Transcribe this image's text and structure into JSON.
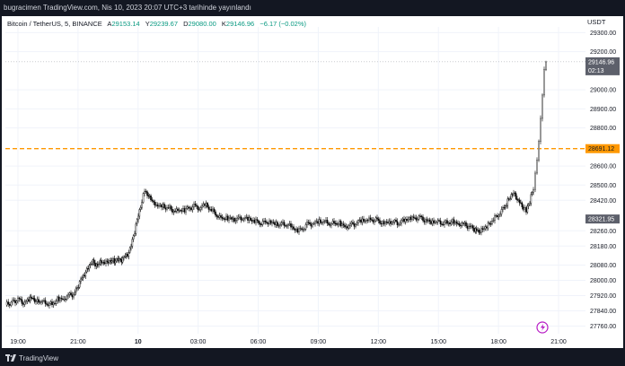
{
  "header": {
    "text": "bugracimen TradingView.com, Nis 10, 2023 20:07 UTC+3 tarihinde yayınlandı"
  },
  "symbol_line": "Bitcoin / TetherUS, 5, BINANCE",
  "ohlc": {
    "o_label": "A",
    "o_value": "29153.14",
    "h_label": "Y",
    "h_value": "29239.67",
    "l_label": "D",
    "l_value": "29080.00",
    "c_label": "K",
    "c_value": "29146.96",
    "change": "−6.17 (−0.02%)"
  },
  "currency_label": "USDT",
  "footer": {
    "brand": "TradingView"
  },
  "colors": {
    "frame": "#131722",
    "candle": "#000000",
    "orange_line": "#ff9800",
    "price_badge": "#5d606b"
  },
  "chart_data": {
    "type": "candlestick",
    "title": "Bitcoin / TetherUS, 5, BINANCE",
    "ylim": [
      27720,
      29330
    ],
    "y_ticks": [
      29300,
      29200,
      29000,
      28900,
      28800,
      28600,
      28500,
      28420,
      28260,
      28180,
      28080,
      28000,
      27920,
      27840,
      27760
    ],
    "y_tick_labels": [
      "29300.00",
      "29200.00",
      "29000.00",
      "28900.00",
      "28800.00",
      "28600.00",
      "28500.00",
      "28420.00",
      "28260.00",
      "28180.00",
      "28080.00",
      "28000.00",
      "27920.00",
      "27840.00",
      "27760.00"
    ],
    "x_ticks": [
      "19:00",
      "21:00",
      "10",
      "03:00",
      "06:00",
      "09:00",
      "12:00",
      "15:00",
      "18:00",
      "21:00"
    ],
    "last_price": {
      "value": 29146.96,
      "label": "29146.96",
      "countdown": "02:13"
    },
    "horizontal_line": {
      "value": 28691.12,
      "label": "28691.12"
    },
    "marker_price": {
      "value": 28321.95,
      "label": "28321.95"
    },
    "price_path": [
      [
        0,
        27870
      ],
      [
        8,
        27890
      ],
      [
        14,
        27900
      ],
      [
        20,
        27885
      ],
      [
        26,
        27895
      ],
      [
        30,
        27910
      ],
      [
        34,
        27895
      ],
      [
        40,
        27885
      ],
      [
        46,
        27880
      ],
      [
        52,
        27870
      ],
      [
        58,
        27900
      ],
      [
        64,
        27905
      ],
      [
        70,
        27920
      ],
      [
        76,
        27930
      ],
      [
        80,
        27960
      ],
      [
        84,
        28000
      ],
      [
        88,
        28030
      ],
      [
        92,
        28060
      ],
      [
        96,
        28100
      ],
      [
        100,
        28080
      ],
      [
        104,
        28090
      ],
      [
        108,
        28100
      ],
      [
        112,
        28095
      ],
      [
        116,
        28105
      ],
      [
        120,
        28100
      ],
      [
        124,
        28110
      ],
      [
        128,
        28100
      ],
      [
        132,
        28120
      ],
      [
        136,
        28130
      ],
      [
        140,
        28180
      ],
      [
        144,
        28260
      ],
      [
        148,
        28340
      ],
      [
        152,
        28420
      ],
      [
        155,
        28470
      ],
      [
        158,
        28450
      ],
      [
        162,
        28420
      ],
      [
        168,
        28400
      ],
      [
        174,
        28390
      ],
      [
        180,
        28380
      ],
      [
        186,
        28370
      ],
      [
        192,
        28360
      ],
      [
        198,
        28370
      ],
      [
        204,
        28380
      ],
      [
        210,
        28390
      ],
      [
        216,
        28380
      ],
      [
        222,
        28400
      ],
      [
        228,
        28370
      ],
      [
        234,
        28350
      ],
      [
        240,
        28320
      ],
      [
        246,
        28330
      ],
      [
        252,
        28325
      ],
      [
        258,
        28320
      ],
      [
        264,
        28330
      ],
      [
        270,
        28320
      ],
      [
        276,
        28310
      ],
      [
        282,
        28305
      ],
      [
        288,
        28300
      ],
      [
        294,
        28310
      ],
      [
        300,
        28300
      ],
      [
        306,
        28290
      ],
      [
        312,
        28295
      ],
      [
        318,
        28280
      ],
      [
        324,
        28260
      ],
      [
        330,
        28270
      ],
      [
        336,
        28295
      ],
      [
        342,
        28300
      ],
      [
        348,
        28310
      ],
      [
        354,
        28305
      ],
      [
        360,
        28300
      ],
      [
        366,
        28295
      ],
      [
        372,
        28300
      ],
      [
        378,
        28285
      ],
      [
        384,
        28290
      ],
      [
        390,
        28300
      ],
      [
        396,
        28315
      ],
      [
        402,
        28310
      ],
      [
        408,
        28320
      ],
      [
        414,
        28315
      ],
      [
        420,
        28300
      ],
      [
        426,
        28310
      ],
      [
        432,
        28305
      ],
      [
        438,
        28300
      ],
      [
        444,
        28315
      ],
      [
        450,
        28320
      ],
      [
        456,
        28330
      ],
      [
        462,
        28330
      ],
      [
        468,
        28315
      ],
      [
        474,
        28310
      ],
      [
        480,
        28305
      ],
      [
        486,
        28300
      ],
      [
        492,
        28300
      ],
      [
        498,
        28305
      ],
      [
        504,
        28300
      ],
      [
        510,
        28295
      ],
      [
        516,
        28285
      ],
      [
        522,
        28270
      ],
      [
        526,
        28260
      ],
      [
        530,
        28265
      ],
      [
        536,
        28280
      ],
      [
        542,
        28310
      ],
      [
        548,
        28340
      ],
      [
        554,
        28370
      ],
      [
        558,
        28400
      ],
      [
        562,
        28440
      ],
      [
        566,
        28460
      ],
      [
        570,
        28430
      ],
      [
        574,
        28400
      ],
      [
        578,
        28380
      ],
      [
        580,
        28360
      ],
      [
        584,
        28420
      ],
      [
        588,
        28480
      ],
      [
        590,
        28560
      ],
      [
        592,
        28640
      ],
      [
        594,
        28720
      ],
      [
        596,
        28850
      ],
      [
        598,
        28980
      ],
      [
        600,
        29100
      ],
      [
        602,
        29146.96
      ]
    ]
  }
}
